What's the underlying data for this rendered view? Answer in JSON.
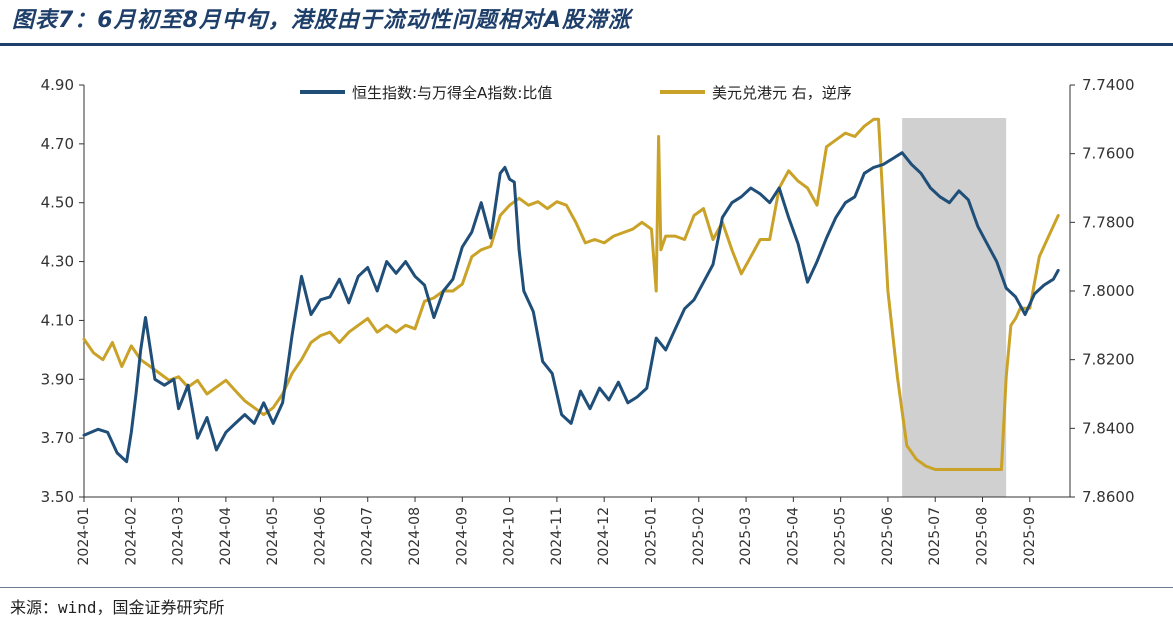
{
  "title": "图表7：6月初至8月中旬，港股由于流动性问题相对A股滞涨",
  "source": "来源：wind，国金证券研究所",
  "colors": {
    "hsi": "#1f4e79",
    "usdhkd": "#c9a227",
    "shade": "#c8c8c8"
  },
  "chart_data": {
    "type": "line",
    "title": "6月初至8月中旬，港股由于流动性问题相对A股滞涨",
    "x_tick_labels": [
      "2024-01",
      "2024-02",
      "2024-03",
      "2024-04",
      "2024-05",
      "2024-06",
      "2024-07",
      "2024-08",
      "2024-09",
      "2024-10",
      "2024-11",
      "2024-12",
      "2025-01",
      "2025-02",
      "2025-03",
      "2025-04",
      "2025-05",
      "2025-06",
      "2025-07",
      "2025-08",
      "2025-09"
    ],
    "y_left": {
      "ylim": [
        3.5,
        4.9
      ],
      "ticks": [
        "3.50",
        "3.70",
        "3.90",
        "4.10",
        "4.30",
        "4.50",
        "4.70",
        "4.90"
      ]
    },
    "y_right": {
      "ylim": [
        7.74,
        7.86
      ],
      "inverted": true,
      "ticks": [
        "7.7400",
        "7.7600",
        "7.7800",
        "7.8000",
        "7.8200",
        "7.8400",
        "7.8600"
      ]
    },
    "shaded_region": {
      "from": 17.3,
      "to": 19.5
    },
    "series": [
      {
        "name": "恒生指数:与万得全A指数:比值",
        "axis": "left",
        "x": [
          0,
          0.3,
          0.5,
          0.7,
          0.9,
          1.0,
          1.1,
          1.2,
          1.3,
          1.5,
          1.7,
          1.9,
          2.0,
          2.2,
          2.4,
          2.6,
          2.8,
          3.0,
          3.2,
          3.4,
          3.6,
          3.8,
          4.0,
          4.2,
          4.4,
          4.6,
          4.8,
          5.0,
          5.2,
          5.4,
          5.6,
          5.8,
          6.0,
          6.2,
          6.4,
          6.6,
          6.8,
          7.0,
          7.2,
          7.4,
          7.6,
          7.8,
          8.0,
          8.2,
          8.4,
          8.6,
          8.8,
          8.9,
          9.0,
          9.1,
          9.2,
          9.3,
          9.5,
          9.7,
          9.9,
          10.1,
          10.3,
          10.5,
          10.7,
          10.9,
          11.1,
          11.3,
          11.5,
          11.7,
          11.9,
          12.1,
          12.3,
          12.5,
          12.7,
          12.9,
          13.1,
          13.3,
          13.5,
          13.7,
          13.9,
          14.1,
          14.3,
          14.5,
          14.7,
          14.9,
          15.1,
          15.3,
          15.5,
          15.7,
          15.9,
          16.1,
          16.3,
          16.5,
          16.7,
          16.9,
          17.1,
          17.3,
          17.5,
          17.7,
          17.9,
          18.1,
          18.3,
          18.5,
          18.7,
          18.9,
          19.1,
          19.3,
          19.5,
          19.7,
          19.9,
          20.1,
          20.3,
          20.5,
          20.6
        ],
        "values": [
          3.71,
          3.73,
          3.72,
          3.65,
          3.62,
          3.72,
          3.85,
          4.0,
          4.11,
          3.9,
          3.88,
          3.9,
          3.8,
          3.88,
          3.7,
          3.77,
          3.66,
          3.72,
          3.75,
          3.78,
          3.75,
          3.82,
          3.75,
          3.82,
          4.05,
          4.25,
          4.12,
          4.17,
          4.18,
          4.24,
          4.16,
          4.25,
          4.28,
          4.2,
          4.3,
          4.26,
          4.3,
          4.25,
          4.22,
          4.11,
          4.2,
          4.24,
          4.35,
          4.4,
          4.5,
          4.38,
          4.6,
          4.62,
          4.58,
          4.57,
          4.34,
          4.2,
          4.13,
          3.96,
          3.92,
          3.78,
          3.75,
          3.86,
          3.8,
          3.87,
          3.83,
          3.89,
          3.82,
          3.84,
          3.87,
          4.04,
          4.0,
          4.07,
          4.14,
          4.17,
          4.23,
          4.29,
          4.45,
          4.5,
          4.52,
          4.55,
          4.53,
          4.5,
          4.55,
          4.45,
          4.36,
          4.23,
          4.3,
          4.38,
          4.45,
          4.5,
          4.52,
          4.6,
          4.62,
          4.63,
          4.65,
          4.67,
          4.63,
          4.6,
          4.55,
          4.52,
          4.5,
          4.54,
          4.51,
          4.42,
          4.36,
          4.3,
          4.21,
          4.18,
          4.12,
          4.19,
          4.22,
          4.24,
          4.27
        ]
      },
      {
        "name": "美元兑港元 右，逆序",
        "axis": "right",
        "x": [
          0,
          0.2,
          0.4,
          0.6,
          0.8,
          1.0,
          1.2,
          1.4,
          1.6,
          1.8,
          2.0,
          2.2,
          2.4,
          2.6,
          2.8,
          3.0,
          3.2,
          3.4,
          3.6,
          3.8,
          4.0,
          4.2,
          4.4,
          4.6,
          4.8,
          5.0,
          5.2,
          5.4,
          5.6,
          5.8,
          6.0,
          6.2,
          6.4,
          6.6,
          6.8,
          7.0,
          7.2,
          7.4,
          7.6,
          7.8,
          8.0,
          8.2,
          8.4,
          8.6,
          8.8,
          9.0,
          9.2,
          9.4,
          9.6,
          9.8,
          10.0,
          10.2,
          10.4,
          10.6,
          10.8,
          11.0,
          11.2,
          11.4,
          11.6,
          11.8,
          12.0,
          12.1,
          12.15,
          12.2,
          12.3,
          12.5,
          12.7,
          12.9,
          13.1,
          13.3,
          13.5,
          13.7,
          13.9,
          14.1,
          14.3,
          14.5,
          14.7,
          14.9,
          15.1,
          15.3,
          15.5,
          15.7,
          15.9,
          16.1,
          16.3,
          16.5,
          16.7,
          16.8,
          16.9,
          17.0,
          17.2,
          17.4,
          17.6,
          17.8,
          18.0,
          18.2,
          18.4,
          18.6,
          18.8,
          19.0,
          19.2,
          19.4,
          19.5,
          19.6,
          19.7,
          19.8,
          20.0,
          20.2,
          20.4,
          20.6
        ],
        "values": [
          7.814,
          7.818,
          7.82,
          7.815,
          7.822,
          7.816,
          7.82,
          7.822,
          7.824,
          7.826,
          7.825,
          7.828,
          7.826,
          7.83,
          7.828,
          7.826,
          7.829,
          7.832,
          7.834,
          7.836,
          7.834,
          7.83,
          7.824,
          7.82,
          7.815,
          7.813,
          7.812,
          7.815,
          7.812,
          7.81,
          7.808,
          7.812,
          7.81,
          7.812,
          7.81,
          7.811,
          7.803,
          7.802,
          7.8,
          7.8,
          7.798,
          7.79,
          7.788,
          7.787,
          7.778,
          7.775,
          7.773,
          7.775,
          7.774,
          7.776,
          7.774,
          7.775,
          7.78,
          7.786,
          7.785,
          7.786,
          7.784,
          7.783,
          7.782,
          7.78,
          7.782,
          7.8,
          7.755,
          7.788,
          7.784,
          7.784,
          7.785,
          7.778,
          7.776,
          7.785,
          7.78,
          7.788,
          7.795,
          7.79,
          7.785,
          7.785,
          7.77,
          7.765,
          7.768,
          7.77,
          7.775,
          7.758,
          7.756,
          7.754,
          7.755,
          7.752,
          7.75,
          7.75,
          7.775,
          7.8,
          7.825,
          7.845,
          7.849,
          7.851,
          7.852,
          7.852,
          7.852,
          7.852,
          7.852,
          7.852,
          7.852,
          7.852,
          7.825,
          7.81,
          7.808,
          7.805,
          7.805,
          7.79,
          7.784,
          7.778
        ]
      }
    ]
  }
}
